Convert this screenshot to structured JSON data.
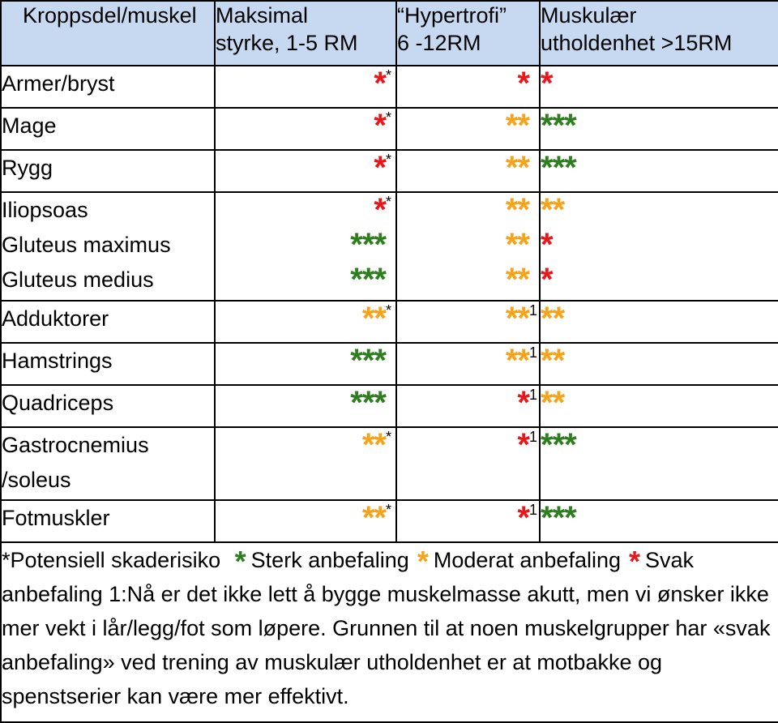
{
  "colors": {
    "header_bg": "#c6d9f1",
    "strong": "#2e7d1f",
    "moderate": "#f5a31a",
    "weak": "#e8171b"
  },
  "headers": [
    [
      "Kroppsdel/muskel"
    ],
    [
      "Maksimal",
      "styrke, 1-5 RM"
    ],
    [
      "“Hypertrofi”",
      "6 -12RM"
    ],
    [
      "Muskulær",
      "utholdenhet  >15RM"
    ]
  ],
  "rows": [
    {
      "names": [
        "Armer/bryst"
      ],
      "cells": [
        [
          {
            "stars": "*",
            "level": "weak",
            "note": "*"
          }
        ],
        [
          {
            "stars": "*",
            "level": "weak",
            "note": ""
          }
        ],
        [
          {
            "stars": "*",
            "level": "weak",
            "note": ""
          }
        ]
      ]
    },
    {
      "names": [
        "Mage"
      ],
      "cells": [
        [
          {
            "stars": "*",
            "level": "weak",
            "note": "*"
          }
        ],
        [
          {
            "stars": "**",
            "level": "moderate",
            "note": ""
          }
        ],
        [
          {
            "stars": "***",
            "level": "strong",
            "note": ""
          }
        ]
      ]
    },
    {
      "names": [
        "Rygg"
      ],
      "cells": [
        [
          {
            "stars": "*",
            "level": "weak",
            "note": "*"
          }
        ],
        [
          {
            "stars": "**",
            "level": "moderate",
            "note": ""
          }
        ],
        [
          {
            "stars": "***",
            "level": "strong",
            "note": ""
          }
        ]
      ]
    },
    {
      "names": [
        "Iliopsoas",
        "Gluteus maximus",
        "Gluteus medius"
      ],
      "cells": [
        [
          {
            "stars": "*",
            "level": "weak",
            "note": "*"
          },
          {
            "stars": "***",
            "level": "strong",
            "note": ""
          },
          {
            "stars": "***",
            "level": "strong",
            "note": ""
          }
        ],
        [
          {
            "stars": "**",
            "level": "moderate",
            "note": ""
          },
          {
            "stars": "**",
            "level": "moderate",
            "note": ""
          },
          {
            "stars": "**",
            "level": "moderate",
            "note": ""
          }
        ],
        [
          {
            "stars": "**",
            "level": "moderate",
            "note": ""
          },
          {
            "stars": "*",
            "level": "weak",
            "note": ""
          },
          {
            "stars": "*",
            "level": "weak",
            "note": ""
          }
        ]
      ]
    },
    {
      "names": [
        "Adduktorer"
      ],
      "cells": [
        [
          {
            "stars": "**",
            "level": "moderate",
            "note": "*"
          }
        ],
        [
          {
            "stars": "**",
            "level": "moderate",
            "note": "1"
          }
        ],
        [
          {
            "stars": "**",
            "level": "moderate",
            "note": ""
          }
        ]
      ]
    },
    {
      "names": [
        "Hamstrings"
      ],
      "cells": [
        [
          {
            "stars": "***",
            "level": "strong",
            "note": ""
          }
        ],
        [
          {
            "stars": "**",
            "level": "moderate",
            "note": "1"
          }
        ],
        [
          {
            "stars": "**",
            "level": "moderate",
            "note": ""
          }
        ]
      ]
    },
    {
      "names": [
        "Quadriceps"
      ],
      "cells": [
        [
          {
            "stars": "***",
            "level": "strong",
            "note": ""
          }
        ],
        [
          {
            "stars": "*",
            "level": "weak",
            "note": "1"
          }
        ],
        [
          {
            "stars": "**",
            "level": "moderate",
            "note": ""
          }
        ]
      ]
    },
    {
      "names": [
        "Gastrocnemius",
        "/soleus"
      ],
      "cells": [
        [
          {
            "stars": "**",
            "level": "moderate",
            "note": "*"
          }
        ],
        [
          {
            "stars": "*",
            "level": "weak",
            "note": "1"
          }
        ],
        [
          {
            "stars": "***",
            "level": "strong",
            "note": ""
          }
        ]
      ]
    },
    {
      "names": [
        "Fotmuskler"
      ],
      "cells": [
        [
          {
            "stars": "**",
            "level": "moderate",
            "note": "*"
          }
        ],
        [
          {
            "stars": "*",
            "level": "weak",
            "note": "1"
          }
        ],
        [
          {
            "stars": "***",
            "level": "strong",
            "note": ""
          }
        ]
      ]
    }
  ],
  "footnote": {
    "risk": "*Potensiell skaderisiko",
    "legend": [
      {
        "star": "*",
        "level": "strong",
        "label": "Sterk anbefaling"
      },
      {
        "star": "*",
        "level": "moderate",
        "label": "Moderat anbefaling"
      },
      {
        "star": "*",
        "level": "weak",
        "label": "Svak"
      }
    ],
    "text": "anbefaling   1:Nå er det ikke lett å bygge muskelmasse akutt, men vi ønsker ikke mer vekt i lår/legg/fot som løpere. Grunnen til at noen muskelgrupper har «svak anbefaling» ved trening av muskulær utholdenhet er at motbakke og spenstserier kan være mer effektivt."
  }
}
